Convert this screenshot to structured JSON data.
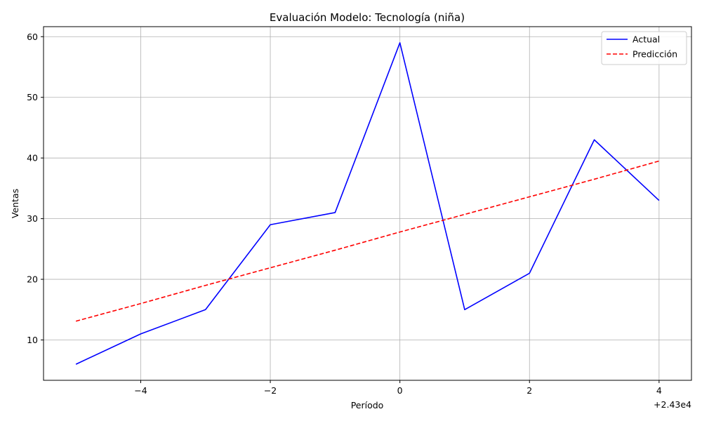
{
  "chart_data": {
    "type": "line",
    "title": "Evaluación Modelo: Tecnología (niña)",
    "xlabel": "Período",
    "ylabel": "Ventas",
    "x_offset_label": "+2.43e4",
    "x_tick_labels": [
      "−4",
      "−2",
      "0",
      "2",
      "4"
    ],
    "y_tick_labels": [
      "10",
      "20",
      "30",
      "40",
      "50",
      "60"
    ],
    "x": [
      24295,
      24296,
      24297,
      24298,
      24299,
      24300,
      24301,
      24302,
      24303,
      24304
    ],
    "xlim": [
      24294.5,
      24304.5
    ],
    "ylim": [
      3.35,
      61.65
    ],
    "grid": true,
    "legend_position": "top-right",
    "series": [
      {
        "name": "Actual",
        "color": "#0000ff",
        "style": "solid",
        "values": [
          6,
          11,
          15,
          29,
          31,
          59,
          15,
          21,
          43,
          33
        ]
      },
      {
        "name": "Predicción",
        "color": "#ff0000",
        "style": "dashed",
        "values": [
          13.1,
          16.0,
          19.0,
          21.9,
          24.8,
          27.8,
          30.7,
          33.6,
          36.5,
          39.5
        ]
      }
    ]
  }
}
